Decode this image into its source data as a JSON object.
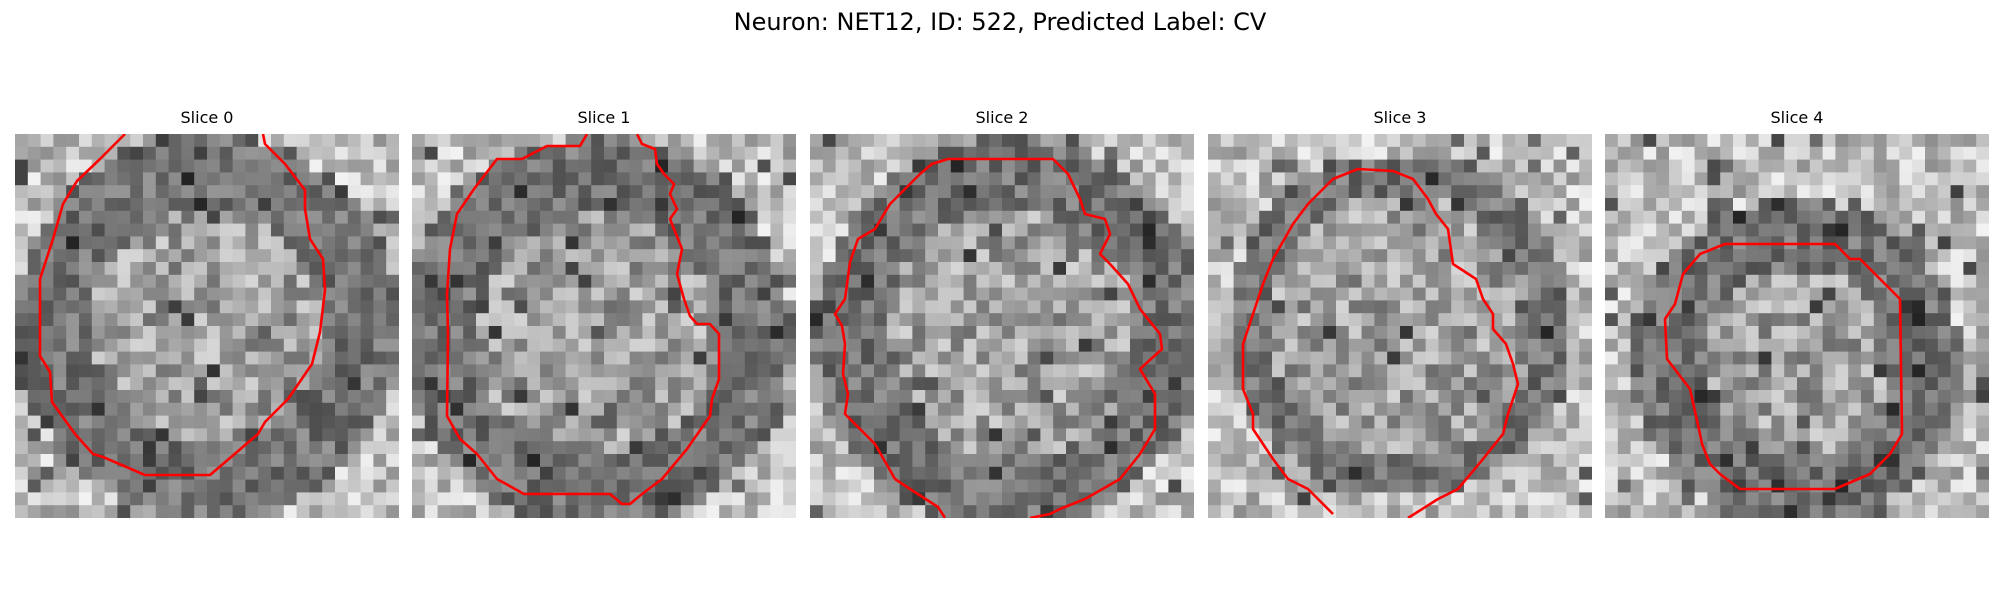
{
  "figure": {
    "title": "Neuron: NET12, ID: 522, Predicted Label: CV"
  },
  "panels": [
    {
      "title": "Slice 0",
      "image": "grayscale-em-slice",
      "contour_color": "#ff0000"
    },
    {
      "title": "Slice 1",
      "image": "grayscale-em-slice",
      "contour_color": "#ff0000"
    },
    {
      "title": "Slice 2",
      "image": "grayscale-em-slice",
      "contour_color": "#ff0000"
    },
    {
      "title": "Slice 3",
      "image": "grayscale-em-slice",
      "contour_color": "#ff0000"
    },
    {
      "title": "Slice 4",
      "image": "grayscale-em-slice",
      "contour_color": "#ff0000"
    }
  ]
}
